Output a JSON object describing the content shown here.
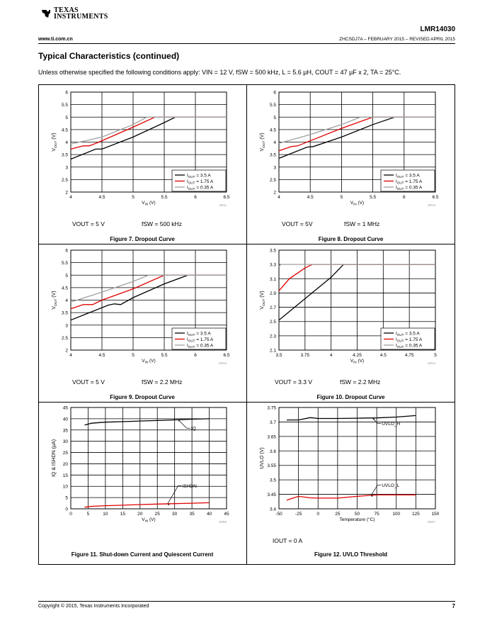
{
  "header": {
    "logo_line1": "TEXAS",
    "logo_line2": "INSTRUMENTS",
    "part_number": "LMR14030",
    "website": "www.ti.com.cn",
    "doc_id": "ZHCSDJ7A – FEBRUARY 2015 – REVISED APRIL 2015"
  },
  "section": {
    "title": "Typical Characteristics (continued)",
    "conditions": "Unless otherwise specified the following conditions apply: VIN = 12 V, fSW = 500 kHz, L = 5.6 µH, COUT = 47 µF x 2, TA = 25°C."
  },
  "footer": {
    "copyright": "Copyright © 2015, Texas Instruments Incorporated",
    "page_number": "7"
  },
  "chart_data": [
    {
      "type": "line",
      "id": "fig7",
      "caption": "Figure 7. Dropout Curve",
      "xlabel": "VIN (V)",
      "ylabel": "VOUT (V)",
      "xlim": [
        4,
        6.5
      ],
      "ylim": [
        2,
        6
      ],
      "xticks": [
        4,
        4.5,
        5,
        5.5,
        6,
        6.5
      ],
      "yticks": [
        2,
        2.5,
        3,
        3.5,
        4,
        4.5,
        5,
        5.5,
        6
      ],
      "code": "D011",
      "conditions": [
        "VOUT = 5 V",
        "fSW = 500 kHz"
      ],
      "legend_position": "bottom-right",
      "series": [
        {
          "name": "IOUT = 3.5 A",
          "color": "#000000",
          "x": [
            4,
            4.4,
            4.5,
            5.0,
            5.5,
            5.68,
            6.5
          ],
          "y": [
            3.32,
            3.72,
            3.72,
            4.2,
            4.78,
            5.0,
            5.0
          ]
        },
        {
          "name": "IOUT = 1.75 A",
          "color": "#e00000",
          "x": [
            4,
            4.2,
            4.3,
            4.45,
            5.0,
            5.35,
            6.5
          ],
          "y": [
            3.72,
            3.85,
            3.85,
            4.0,
            4.6,
            5.0,
            5.0
          ]
        },
        {
          "name": "IOUT = 0.35 A",
          "color": "#a0a0a0",
          "x": [
            4,
            4.5,
            5.0,
            5.22,
            6.5
          ],
          "y": [
            3.92,
            4.2,
            4.7,
            5.0,
            5.0
          ]
        }
      ]
    },
    {
      "type": "line",
      "id": "fig8",
      "caption": "Figure 8. Dropout Curve",
      "xlabel": "VIN (V)",
      "ylabel": "VOUT (V)",
      "xlim": [
        4,
        6.5
      ],
      "ylim": [
        2,
        6
      ],
      "xticks": [
        4,
        4.5,
        5,
        5.5,
        6,
        6.5
      ],
      "yticks": [
        2,
        2.5,
        3,
        3.5,
        4,
        4.5,
        5,
        5.5,
        6
      ],
      "code": "D012",
      "conditions": [
        "VOUT = 5V",
        "fSW = 1 MHz"
      ],
      "legend_position": "bottom-right",
      "series": [
        {
          "name": "IOUT = 3.5 A",
          "color": "#000000",
          "x": [
            4,
            4.45,
            4.55,
            5.0,
            5.5,
            5.85,
            6.5
          ],
          "y": [
            3.35,
            3.8,
            3.82,
            4.2,
            4.7,
            5.0,
            5.0
          ]
        },
        {
          "name": "IOUT = 1.75 A",
          "color": "#e00000",
          "x": [
            4,
            4.2,
            4.3,
            4.5,
            5.0,
            5.5,
            6.5
          ],
          "y": [
            3.65,
            3.82,
            3.85,
            4.05,
            4.55,
            5.0,
            5.0
          ]
        },
        {
          "name": "IOUT = 0.35 A",
          "color": "#a0a0a0",
          "x": [
            4,
            4.5,
            5.0,
            5.3,
            6.5
          ],
          "y": [
            3.95,
            4.3,
            4.7,
            5.0,
            5.0
          ]
        }
      ]
    },
    {
      "type": "line",
      "id": "fig9",
      "caption": "Figure 9. Dropout Curve",
      "xlabel": "VIN (V)",
      "ylabel": "VOUT (V)",
      "xlim": [
        4,
        6.5
      ],
      "ylim": [
        2,
        6
      ],
      "xticks": [
        4,
        4.5,
        5,
        5.5,
        6,
        6.5
      ],
      "yticks": [
        2,
        2.5,
        3,
        3.5,
        4,
        4.5,
        5,
        5.5,
        6
      ],
      "code": "D013",
      "conditions": [
        "VOUT = 5 V",
        "fSW = 2.2 MHz"
      ],
      "legend_position": "bottom-right",
      "series": [
        {
          "name": "IOUT = 3.5 A",
          "color": "#000000",
          "x": [
            4,
            4.6,
            4.7,
            4.8,
            5.0,
            5.5,
            5.88,
            6.5
          ],
          "y": [
            3.2,
            3.8,
            3.85,
            3.82,
            4.1,
            4.65,
            5.0,
            5.0
          ]
        },
        {
          "name": "IOUT = 1.75 A",
          "color": "#e00000",
          "x": [
            4,
            4.2,
            4.35,
            4.5,
            5.0,
            5.5,
            6.5
          ],
          "y": [
            3.65,
            3.82,
            3.82,
            4.0,
            4.45,
            5.0,
            5.0
          ]
        },
        {
          "name": "IOUT = 0.35 A",
          "color": "#a0a0a0",
          "x": [
            4,
            4.5,
            5.0,
            5.25,
            6.5
          ],
          "y": [
            3.92,
            4.32,
            4.75,
            5.0,
            5.0
          ]
        }
      ]
    },
    {
      "type": "line",
      "id": "fig10",
      "caption": "Figure 10. Dropout Curve",
      "xlabel": "VIN (V)",
      "ylabel": "VOUT (V)",
      "xlim": [
        3.5,
        5
      ],
      "ylim": [
        2.1,
        3.5
      ],
      "xticks": [
        3.5,
        3.75,
        4,
        4.25,
        4.5,
        4.75,
        5
      ],
      "yticks": [
        2.1,
        2.3,
        2.5,
        2.7,
        2.9,
        3.1,
        3.3,
        3.5
      ],
      "code": "D014",
      "conditions": [
        "VOUT = 3.3 V",
        "fSW = 2.2 MHz"
      ],
      "legend_position": "bottom-right",
      "series": [
        {
          "name": "IOUT = 3.5 A",
          "color": "#000000",
          "x": [
            3.5,
            3.75,
            4.0,
            4.12,
            5.0
          ],
          "y": [
            2.52,
            2.82,
            3.12,
            3.3,
            3.3
          ]
        },
        {
          "name": "IOUT = 1.75 A",
          "color": "#e00000",
          "x": [
            3.5,
            3.6,
            3.75,
            3.82,
            5.0
          ],
          "y": [
            2.93,
            3.1,
            3.25,
            3.3,
            3.3
          ]
        },
        {
          "name": "IOUT = 0.35 A",
          "color": "#a0a0a0",
          "x": [
            3.5,
            3.52,
            5.0
          ],
          "y": [
            3.27,
            3.3,
            3.3
          ]
        }
      ]
    },
    {
      "type": "line",
      "id": "fig11",
      "caption": "Figure 11. Shut-down Current and Quiescent Current",
      "xlabel": "VIN (V)",
      "ylabel": "IQ & ISHDN (µA)",
      "xlim": [
        0,
        45
      ],
      "ylim": [
        0,
        45
      ],
      "xticks": [
        0,
        5,
        10,
        15,
        20,
        25,
        30,
        35,
        40,
        45
      ],
      "yticks": [
        0,
        5,
        10,
        15,
        20,
        25,
        30,
        35,
        40,
        45
      ],
      "code": "D008",
      "conditions": [],
      "annotations": [
        "IQ",
        "ISHDN"
      ],
      "series": [
        {
          "name": "IQ",
          "color": "#000000",
          "x": [
            4,
            6,
            10,
            15,
            20,
            25,
            30,
            35,
            40
          ],
          "y": [
            37.2,
            38.0,
            38.5,
            38.7,
            39.0,
            39.2,
            39.5,
            39.8,
            40.0
          ]
        },
        {
          "name": "ISHDN",
          "color": "#e00000",
          "x": [
            4,
            6,
            10,
            15,
            20,
            25,
            30,
            35,
            40
          ],
          "y": [
            0.7,
            1.1,
            1.4,
            1.6,
            1.9,
            2.1,
            2.3,
            2.5,
            2.7
          ]
        }
      ]
    },
    {
      "type": "line",
      "id": "fig12",
      "caption": "Figure 12. UVLO Threshold",
      "xlabel": "Temperature (°C)",
      "ylabel": "UVLO (V)",
      "xlim": [
        -50,
        150
      ],
      "ylim": [
        3.4,
        3.75
      ],
      "xticks": [
        -50,
        -25,
        0,
        25,
        50,
        75,
        100,
        125,
        150
      ],
      "yticks": [
        3.4,
        3.45,
        3.5,
        3.55,
        3.6,
        3.65,
        3.7,
        3.75
      ],
      "code": "D007",
      "conditions": [
        "IOUT = 0 A"
      ],
      "annotations": [
        "UVLO_H",
        "UVLO_L"
      ],
      "series": [
        {
          "name": "UVLO_H",
          "color": "#000000",
          "x": [
            -40,
            -25,
            -10,
            0,
            25,
            50,
            75,
            100,
            125
          ],
          "y": [
            3.707,
            3.707,
            3.715,
            3.712,
            3.712,
            3.713,
            3.714,
            3.717,
            3.722
          ]
        },
        {
          "name": "UVLO_L",
          "color": "#e00000",
          "x": [
            -40,
            -25,
            -10,
            0,
            25,
            50,
            75,
            100,
            125
          ],
          "y": [
            3.43,
            3.443,
            3.438,
            3.437,
            3.437,
            3.443,
            3.448,
            3.448,
            3.448
          ]
        }
      ]
    }
  ]
}
